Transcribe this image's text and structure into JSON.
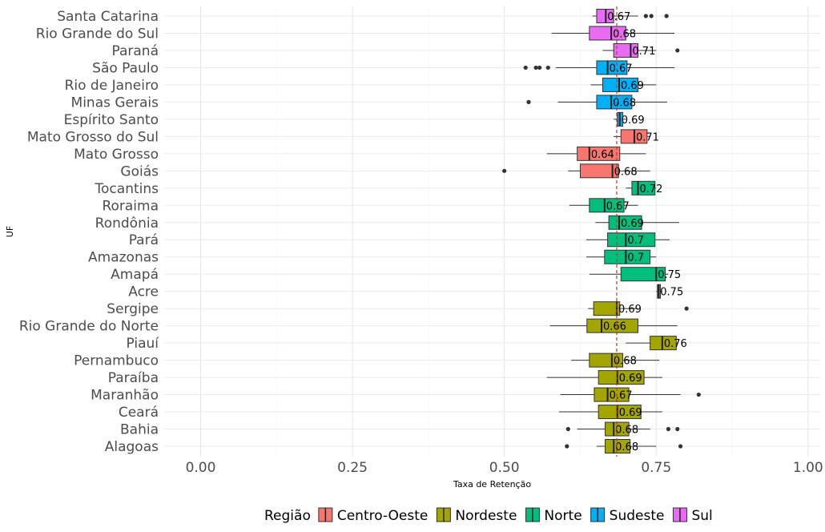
{
  "chart_data": {
    "type": "boxplot",
    "orientation": "horizontal",
    "xlabel": "Taxa de Retenção",
    "ylabel": "UF",
    "xlim": [
      -0.06,
      1.02
    ],
    "xticks": [
      0,
      0.25,
      0.5,
      0.75,
      1
    ],
    "xtick_labels": [
      "0.00",
      "0.25",
      "0.50",
      "0.75",
      "1.00"
    ],
    "reference_line": 0.685,
    "grid": true,
    "legend": {
      "title": "Região",
      "position": "bottom",
      "entries": [
        {
          "name": "Centro-Oeste",
          "color": "#F8766D"
        },
        {
          "name": "Nordeste",
          "color": "#A3A500"
        },
        {
          "name": "Norte",
          "color": "#00BF7D"
        },
        {
          "name": "Sudeste",
          "color": "#00B0F6"
        },
        {
          "name": "Sul",
          "color": "#E76BF3"
        }
      ]
    },
    "categories": [
      {
        "uf": "Santa Catarina",
        "regiao": "Sul",
        "min": 0.645,
        "q1": 0.652,
        "median": 0.667,
        "q3": 0.68,
        "max": 0.72,
        "label": "0.67",
        "outliers": [
          0.733,
          0.742,
          0.767
        ]
      },
      {
        "uf": "Rio Grande do Sul",
        "regiao": "Sul",
        "min": 0.578,
        "q1": 0.64,
        "median": 0.676,
        "q3": 0.7,
        "max": 0.78,
        "label": "0.68",
        "outliers": []
      },
      {
        "uf": "Paraná",
        "regiao": "Sul",
        "min": 0.662,
        "q1": 0.68,
        "median": 0.708,
        "q3": 0.72,
        "max": 0.75,
        "label": "0.71",
        "outliers": [
          0.785
        ]
      },
      {
        "uf": "São Paulo",
        "regiao": "Sudeste",
        "min": 0.585,
        "q1": 0.652,
        "median": 0.67,
        "q3": 0.702,
        "max": 0.78,
        "label": "0.67",
        "outliers": [
          0.535,
          0.552,
          0.558,
          0.572
        ]
      },
      {
        "uf": "Rio de Janeiro",
        "regiao": "Sudeste",
        "min": 0.642,
        "q1": 0.662,
        "median": 0.689,
        "q3": 0.72,
        "max": 0.75,
        "label": "0.69",
        "outliers": []
      },
      {
        "uf": "Minas Gerais",
        "regiao": "Sudeste",
        "min": 0.588,
        "q1": 0.652,
        "median": 0.676,
        "q3": 0.71,
        "max": 0.768,
        "label": "0.68",
        "outliers": [
          0.54
        ]
      },
      {
        "uf": "Espírito Santo",
        "regiao": "Sudeste",
        "min": 0.68,
        "q1": 0.686,
        "median": 0.69,
        "q3": 0.695,
        "max": 0.7,
        "label": "0.69",
        "outliers": []
      },
      {
        "uf": "Mato Grosso do Sul",
        "regiao": "Centro-Oeste",
        "min": 0.68,
        "q1": 0.692,
        "median": 0.714,
        "q3": 0.735,
        "max": 0.74,
        "label": "0.71",
        "outliers": []
      },
      {
        "uf": "Mato Grosso",
        "regiao": "Centro-Oeste",
        "min": 0.57,
        "q1": 0.62,
        "median": 0.64,
        "q3": 0.69,
        "max": 0.733,
        "label": "0.64",
        "outliers": []
      },
      {
        "uf": "Goiás",
        "regiao": "Centro-Oeste",
        "min": 0.605,
        "q1": 0.625,
        "median": 0.678,
        "q3": 0.688,
        "max": 0.74,
        "label": "0.68",
        "outliers": [
          0.5
        ]
      },
      {
        "uf": "Tocantins",
        "regiao": "Norte",
        "min": 0.7,
        "q1": 0.71,
        "median": 0.72,
        "q3": 0.748,
        "max": 0.75,
        "label": "0.72",
        "outliers": []
      },
      {
        "uf": "Roraima",
        "regiao": "Norte",
        "min": 0.607,
        "q1": 0.64,
        "median": 0.665,
        "q3": 0.697,
        "max": 0.72,
        "label": "0.67",
        "outliers": []
      },
      {
        "uf": "Rondônia",
        "regiao": "Norte",
        "min": 0.65,
        "q1": 0.672,
        "median": 0.689,
        "q3": 0.726,
        "max": 0.788,
        "label": "0.69",
        "outliers": []
      },
      {
        "uf": "Pará",
        "regiao": "Norte",
        "min": 0.635,
        "q1": 0.67,
        "median": 0.7,
        "q3": 0.748,
        "max": 0.772,
        "label": "0.7",
        "outliers": []
      },
      {
        "uf": "Amazonas",
        "regiao": "Norte",
        "min": 0.635,
        "q1": 0.665,
        "median": 0.7,
        "q3": 0.74,
        "max": 0.75,
        "label": "0.7",
        "outliers": []
      },
      {
        "uf": "Amapá",
        "regiao": "Norte",
        "min": 0.64,
        "q1": 0.692,
        "median": 0.75,
        "q3": 0.765,
        "max": 0.77,
        "label": "0.75",
        "outliers": []
      },
      {
        "uf": "Acre",
        "regiao": "Norte",
        "min": 0.75,
        "q1": 0.752,
        "median": 0.754,
        "q3": 0.757,
        "max": 0.76,
        "label": "0.75",
        "outliers": []
      },
      {
        "uf": "Sergipe",
        "regiao": "Nordeste",
        "min": 0.638,
        "q1": 0.647,
        "median": 0.685,
        "q3": 0.69,
        "max": 0.72,
        "label": "0.69",
        "outliers": [
          0.8
        ]
      },
      {
        "uf": "Rio Grande do Norte",
        "regiao": "Nordeste",
        "min": 0.575,
        "q1": 0.636,
        "median": 0.66,
        "q3": 0.72,
        "max": 0.785,
        "label": "0.66",
        "outliers": []
      },
      {
        "uf": "Piauí",
        "regiao": "Nordeste",
        "min": 0.7,
        "q1": 0.74,
        "median": 0.76,
        "q3": 0.783,
        "max": 0.785,
        "label": "0.76",
        "outliers": []
      },
      {
        "uf": "Pernambuco",
        "regiao": "Nordeste",
        "min": 0.61,
        "q1": 0.64,
        "median": 0.677,
        "q3": 0.695,
        "max": 0.755,
        "label": "0.68",
        "outliers": []
      },
      {
        "uf": "Paraíba",
        "regiao": "Nordeste",
        "min": 0.57,
        "q1": 0.655,
        "median": 0.686,
        "q3": 0.73,
        "max": 0.76,
        "label": "0.69",
        "outliers": []
      },
      {
        "uf": "Maranhão",
        "regiao": "Nordeste",
        "min": 0.592,
        "q1": 0.648,
        "median": 0.67,
        "q3": 0.705,
        "max": 0.79,
        "label": "0.67",
        "outliers": [
          0.82
        ]
      },
      {
        "uf": "Ceará",
        "regiao": "Nordeste",
        "min": 0.59,
        "q1": 0.655,
        "median": 0.686,
        "q3": 0.725,
        "max": 0.76,
        "label": "0.69",
        "outliers": []
      },
      {
        "uf": "Bahia",
        "regiao": "Nordeste",
        "min": 0.62,
        "q1": 0.666,
        "median": 0.68,
        "q3": 0.705,
        "max": 0.74,
        "label": "0.68",
        "outliers": [
          0.605,
          0.77,
          0.785
        ]
      },
      {
        "uf": "Alagoas",
        "regiao": "Nordeste",
        "min": 0.652,
        "q1": 0.666,
        "median": 0.68,
        "q3": 0.707,
        "max": 0.75,
        "label": "0.68",
        "outliers": [
          0.603,
          0.79
        ]
      }
    ]
  }
}
